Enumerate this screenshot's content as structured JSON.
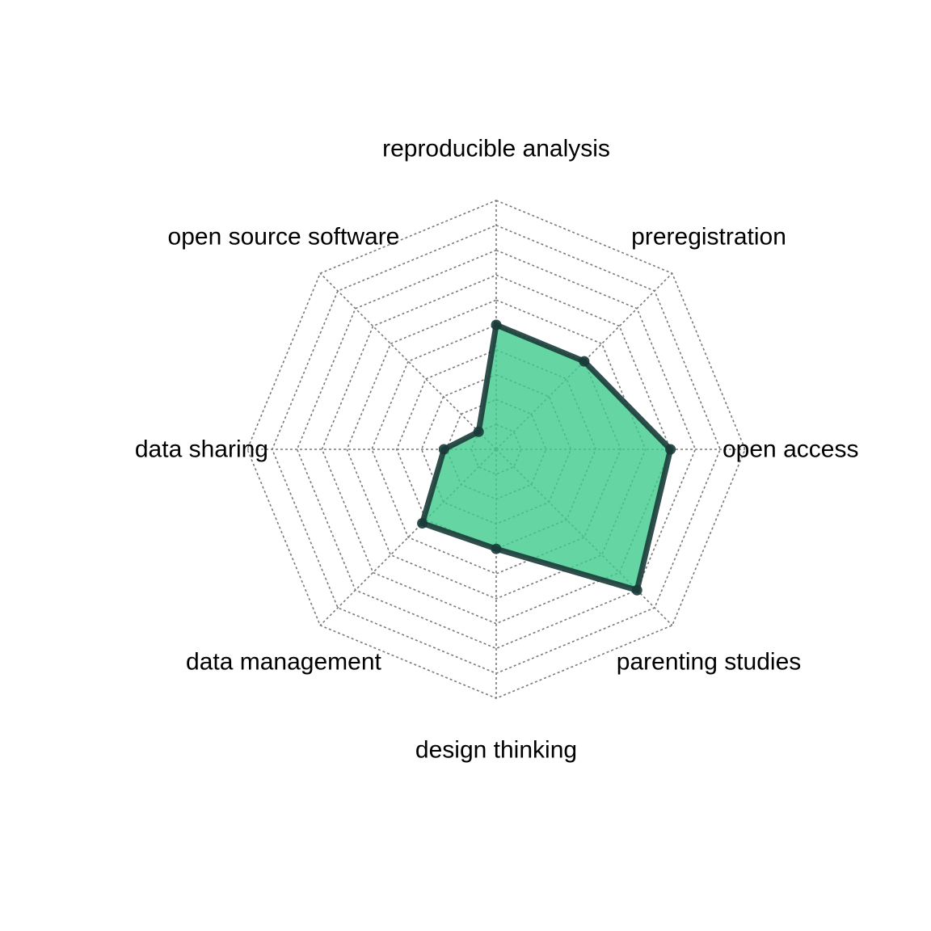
{
  "chart_data": {
    "type": "radar",
    "title": "",
    "axes": [
      "reproducible analysis",
      "preregistration",
      "open access",
      "parenting studies",
      "design thinking",
      "data management",
      "data sharing",
      "open source software"
    ],
    "range": [
      0,
      10
    ],
    "rings": 10,
    "grid": true,
    "series": [
      {
        "values": [
          5.0,
          5.0,
          7.0,
          8.0,
          4.0,
          4.2,
          2.1,
          1.0
        ],
        "fill_color": "#3ecc8c",
        "fill_opacity": 0.8,
        "line_color": "#1a3b38",
        "line_opacity": 0.9
      }
    ]
  }
}
